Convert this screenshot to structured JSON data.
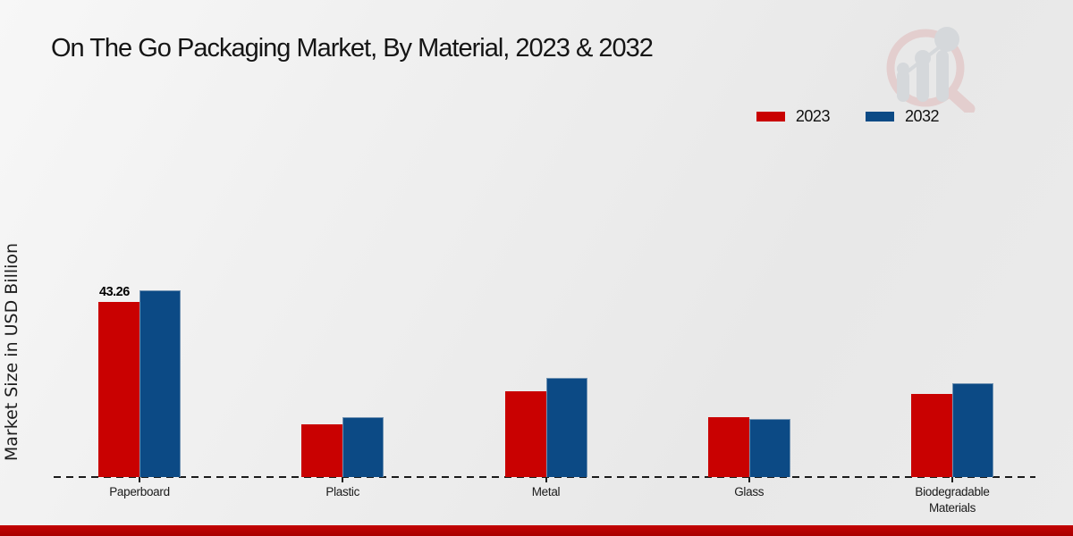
{
  "title": "On The Go Packaging Market, By Material, 2023 & 2032",
  "y_axis_label": "Market Size in USD Billion",
  "legend": [
    {
      "label": "2023",
      "color": "#c90101"
    },
    {
      "label": "2032",
      "color": "#0c4a85"
    }
  ],
  "chart_data": {
    "type": "bar",
    "title": "On The Go Packaging Market, By Material, 2023 & 2032",
    "xlabel": "",
    "ylabel": "Market Size in USD Billion",
    "categories": [
      "Paperboard",
      "Plastic",
      "Metal",
      "Glass",
      "Biodegradable Materials"
    ],
    "series": [
      {
        "name": "2023",
        "color": "#c90101",
        "values": [
          43.26,
          13.1,
          21.2,
          14.7,
          20.5
        ]
      },
      {
        "name": "2032",
        "color": "#0c4a85",
        "values": [
          46.2,
          14.7,
          24.5,
          14.4,
          23.2
        ]
      }
    ],
    "ylim": [
      0,
      48
    ],
    "grid": false,
    "axis_style": "dashed-baseline-only",
    "legend_position": "top-right",
    "bar_labels": [
      {
        "series": "2023",
        "category": "Paperboard",
        "text": "43.26"
      }
    ]
  },
  "watermark": {
    "name": "market-research-logo",
    "ring_color": "#dfb9b9",
    "bars_color": "#c6cbd1"
  },
  "footer": {
    "accent_color": "#b20000"
  }
}
